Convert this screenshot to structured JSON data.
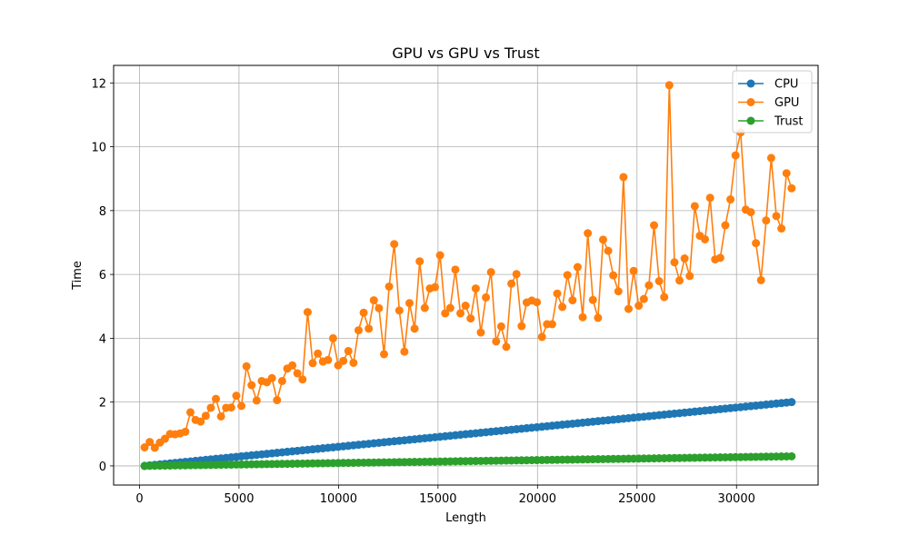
{
  "chart_data": {
    "type": "line",
    "title": "GPU vs GPU vs Trust",
    "xlabel": "Length",
    "ylabel": "Time",
    "xlim": [
      -1300,
      34100
    ],
    "ylim": [
      -0.6,
      12.55
    ],
    "xticks": [
      0,
      5000,
      10000,
      15000,
      20000,
      25000,
      30000
    ],
    "yticks": [
      0,
      2,
      4,
      6,
      8,
      10,
      12
    ],
    "grid": true,
    "legend_position": "top-right",
    "series": [
      {
        "name": "CPU",
        "color": "#1f77b4",
        "x_start": 256,
        "x_step": 256,
        "count": 128,
        "y_start": 0.0,
        "y_end": 2.0,
        "trend": "linear"
      },
      {
        "name": "GPU",
        "color": "#ff7f0e",
        "x": [
          256,
          512,
          768,
          1024,
          1280,
          1536,
          1792,
          2048,
          2304,
          2560,
          2816,
          3072,
          3328,
          3584,
          3840,
          4096,
          4352,
          4608,
          4864,
          5120,
          5376,
          5632,
          5888,
          6144,
          6400,
          6656,
          6912,
          7168,
          7424,
          7680,
          7936,
          8192,
          8448,
          8704,
          8960,
          9216,
          9472,
          9728,
          9984,
          10240,
          10496,
          10752,
          11008,
          11264,
          11520,
          11776,
          12032,
          12288,
          12544,
          12800,
          13056,
          13312,
          13568,
          13824,
          14080,
          14336,
          14592,
          14848,
          15104,
          15360,
          15616,
          15872,
          16128,
          16384,
          16640,
          16896,
          17152,
          17408,
          17664,
          17920,
          18176,
          18432,
          18688,
          18944,
          19200,
          19456,
          19712,
          19968,
          20224,
          20480,
          20736,
          20992,
          21248,
          21504,
          21760,
          22016,
          22272,
          22528,
          22784,
          23040,
          23296,
          23552,
          23808,
          24064,
          24320,
          24576,
          24832,
          25088,
          25344,
          25600,
          25856,
          26112,
          26368,
          26624,
          26880,
          27136,
          27392,
          27648,
          27904,
          28160,
          28416,
          28672,
          28928,
          29184,
          29440,
          29696,
          29952,
          30208,
          30464,
          30720,
          30976,
          31232,
          31488,
          31744,
          32000,
          32256,
          32512,
          32768
        ],
        "y": [
          0.58,
          0.75,
          0.57,
          0.73,
          0.85,
          1.0,
          0.99,
          1.02,
          1.07,
          1.68,
          1.44,
          1.39,
          1.57,
          1.82,
          2.1,
          1.55,
          1.82,
          1.83,
          2.2,
          1.88,
          3.12,
          2.53,
          2.05,
          2.66,
          2.62,
          2.75,
          2.06,
          2.66,
          3.05,
          3.15,
          2.9,
          2.71,
          4.82,
          3.22,
          3.52,
          3.27,
          3.32,
          4.0,
          3.15,
          3.29,
          3.6,
          3.23,
          4.25,
          4.8,
          4.3,
          5.19,
          4.94,
          3.5,
          5.62,
          6.95,
          4.87,
          3.58,
          5.1,
          4.3,
          6.41,
          4.95,
          5.56,
          5.6,
          6.6,
          4.78,
          4.95,
          6.15,
          4.78,
          5.02,
          4.62,
          5.56,
          4.18,
          5.28,
          6.07,
          3.9,
          4.37,
          3.73,
          5.71,
          6.01,
          4.38,
          5.12,
          5.18,
          5.13,
          4.04,
          4.44,
          4.44,
          5.4,
          4.98,
          5.98,
          5.19,
          6.23,
          4.66,
          7.29,
          5.2,
          4.64,
          7.09,
          6.74,
          5.97,
          5.47,
          9.05,
          4.92,
          6.11,
          5.02,
          5.23,
          5.66,
          7.54,
          5.79,
          5.29,
          11.93,
          6.38,
          5.81,
          6.5,
          5.95,
          8.14,
          7.21,
          7.1,
          8.4,
          6.47,
          6.52,
          7.54,
          8.35,
          9.73,
          10.45,
          8.03,
          7.95,
          6.98,
          5.82,
          7.69,
          9.65,
          7.83,
          7.44,
          9.17,
          8.7
        ]
      },
      {
        "name": "Trust",
        "color": "#2ca02c",
        "x_start": 256,
        "x_step": 256,
        "count": 128,
        "y_start": 0.0,
        "y_end": 0.3,
        "trend": "linear"
      }
    ]
  }
}
